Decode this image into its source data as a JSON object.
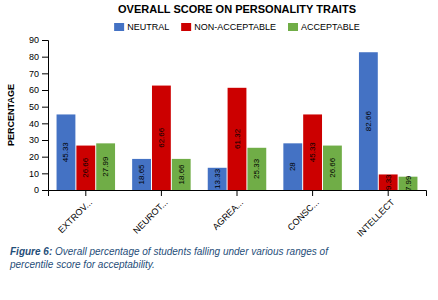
{
  "chart_data": {
    "type": "bar",
    "title": "OVERALL SCORE ON PERSONALITY TRAITS",
    "y_label": "PERCENTAGE",
    "categories": [
      "EXTROV...",
      "NEUROT...",
      "AGREA...",
      "CONSC...",
      "INTELLECT"
    ],
    "series": [
      {
        "name": "NEUTRAL",
        "color": "#4472C4",
        "values": [
          45.33,
          18.65,
          13.33,
          28,
          82.66
        ]
      },
      {
        "name": "NON-ACCEPTABLE",
        "color": "#CC0000",
        "values": [
          26.66,
          62.66,
          61.32,
          45.33,
          9.33
        ]
      },
      {
        "name": "ACCEPTABLE",
        "color": "#70AD47",
        "values": [
          27.99,
          18.66,
          25.33,
          26.66,
          7.99
        ]
      }
    ],
    "ylim": [
      0,
      90
    ],
    "yticks": [
      0,
      10,
      20,
      30,
      40,
      50,
      60,
      70,
      80,
      90
    ],
    "grid": false,
    "legend": "top",
    "data_labels": true,
    "caption": "Figure 6: Overall percentage of students falling under various ranges of\npercentile score for acceptability."
  }
}
